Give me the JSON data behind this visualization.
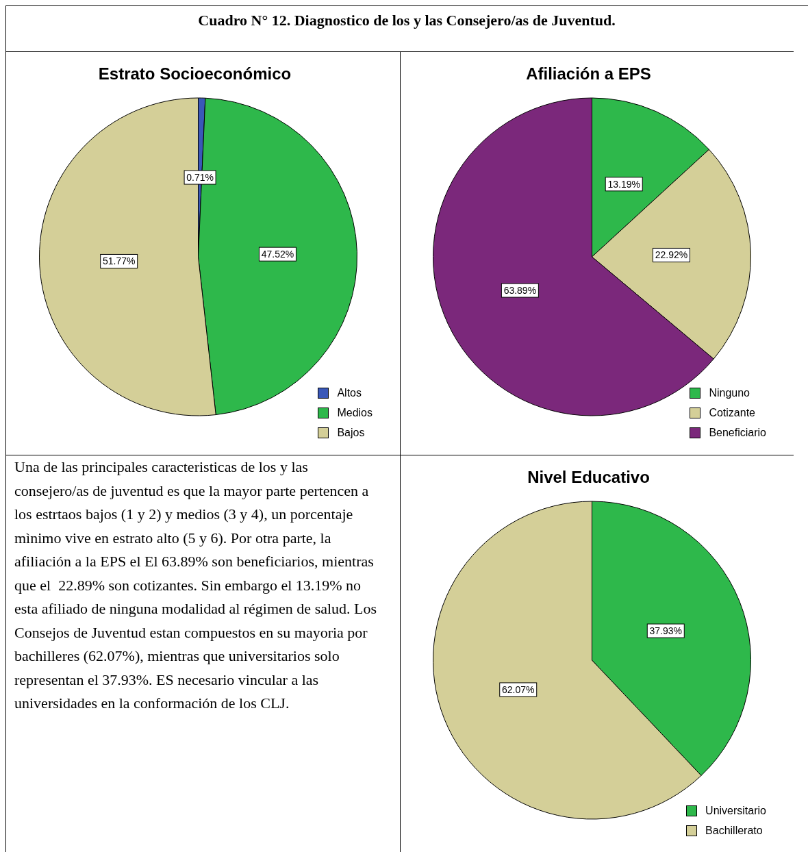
{
  "chart_data": [
    {
      "type": "other",
      "title": "Cuadro N° 12. Diagnostico de los y las Consejero/as de Juventud."
    },
    {
      "type": "pie",
      "title": "Estrato Socioeconómico",
      "categories": [
        "Altos",
        "Medios",
        "Bajos"
      ],
      "values": [
        0.71,
        47.52,
        51.77
      ],
      "colors": [
        "#3a58b8",
        "#2eb84b",
        "#d4cf98"
      ],
      "value_labels": [
        "0.71%",
        "47.52%",
        "51.77%"
      ],
      "legend": "bottom right"
    },
    {
      "type": "pie",
      "title": "Afiliación a EPS",
      "categories": [
        "Ninguno",
        "Cotizante",
        "Beneficiario"
      ],
      "values": [
        13.19,
        22.92,
        63.89
      ],
      "colors": [
        "#2eb84b",
        "#d4cf98",
        "#7b287b"
      ],
      "value_labels": [
        "13.19%",
        "22.92%",
        "63.89%"
      ],
      "legend": "bottom right"
    },
    {
      "type": "other",
      "annotations": [
        "Una de las principales caracteristicas de los y las consejero/as de juventud es que la mayor parte pertencen a los estrtaos bajos (1 y 2) y medios (3 y 4), un porcentaje mìnimo vive en estrato alto (5 y 6). Por otra parte, la afiliación a la EPS el El 63.89% son beneficiarios, mientras que el  22.89% son cotizantes. Sin embargo el 13.19% no esta afiliado de ninguna modalidad al régimen de salud. Los Consejos de Juventud estan compuestos en su mayoria por bachilleres (62.07%), mientras que universitarios solo representan el 37.93%. ES necesario vincular a las universidades en la conformación de los CLJ."
      ]
    },
    {
      "type": "pie",
      "title": "Nivel Educativo",
      "categories": [
        "Universitario",
        "Bachillerato"
      ],
      "values": [
        37.93,
        62.07
      ],
      "colors": [
        "#2eb84b",
        "#d4cf98"
      ],
      "value_labels": [
        "37.93%",
        "62.07%"
      ],
      "legend": "bottom right"
    }
  ]
}
